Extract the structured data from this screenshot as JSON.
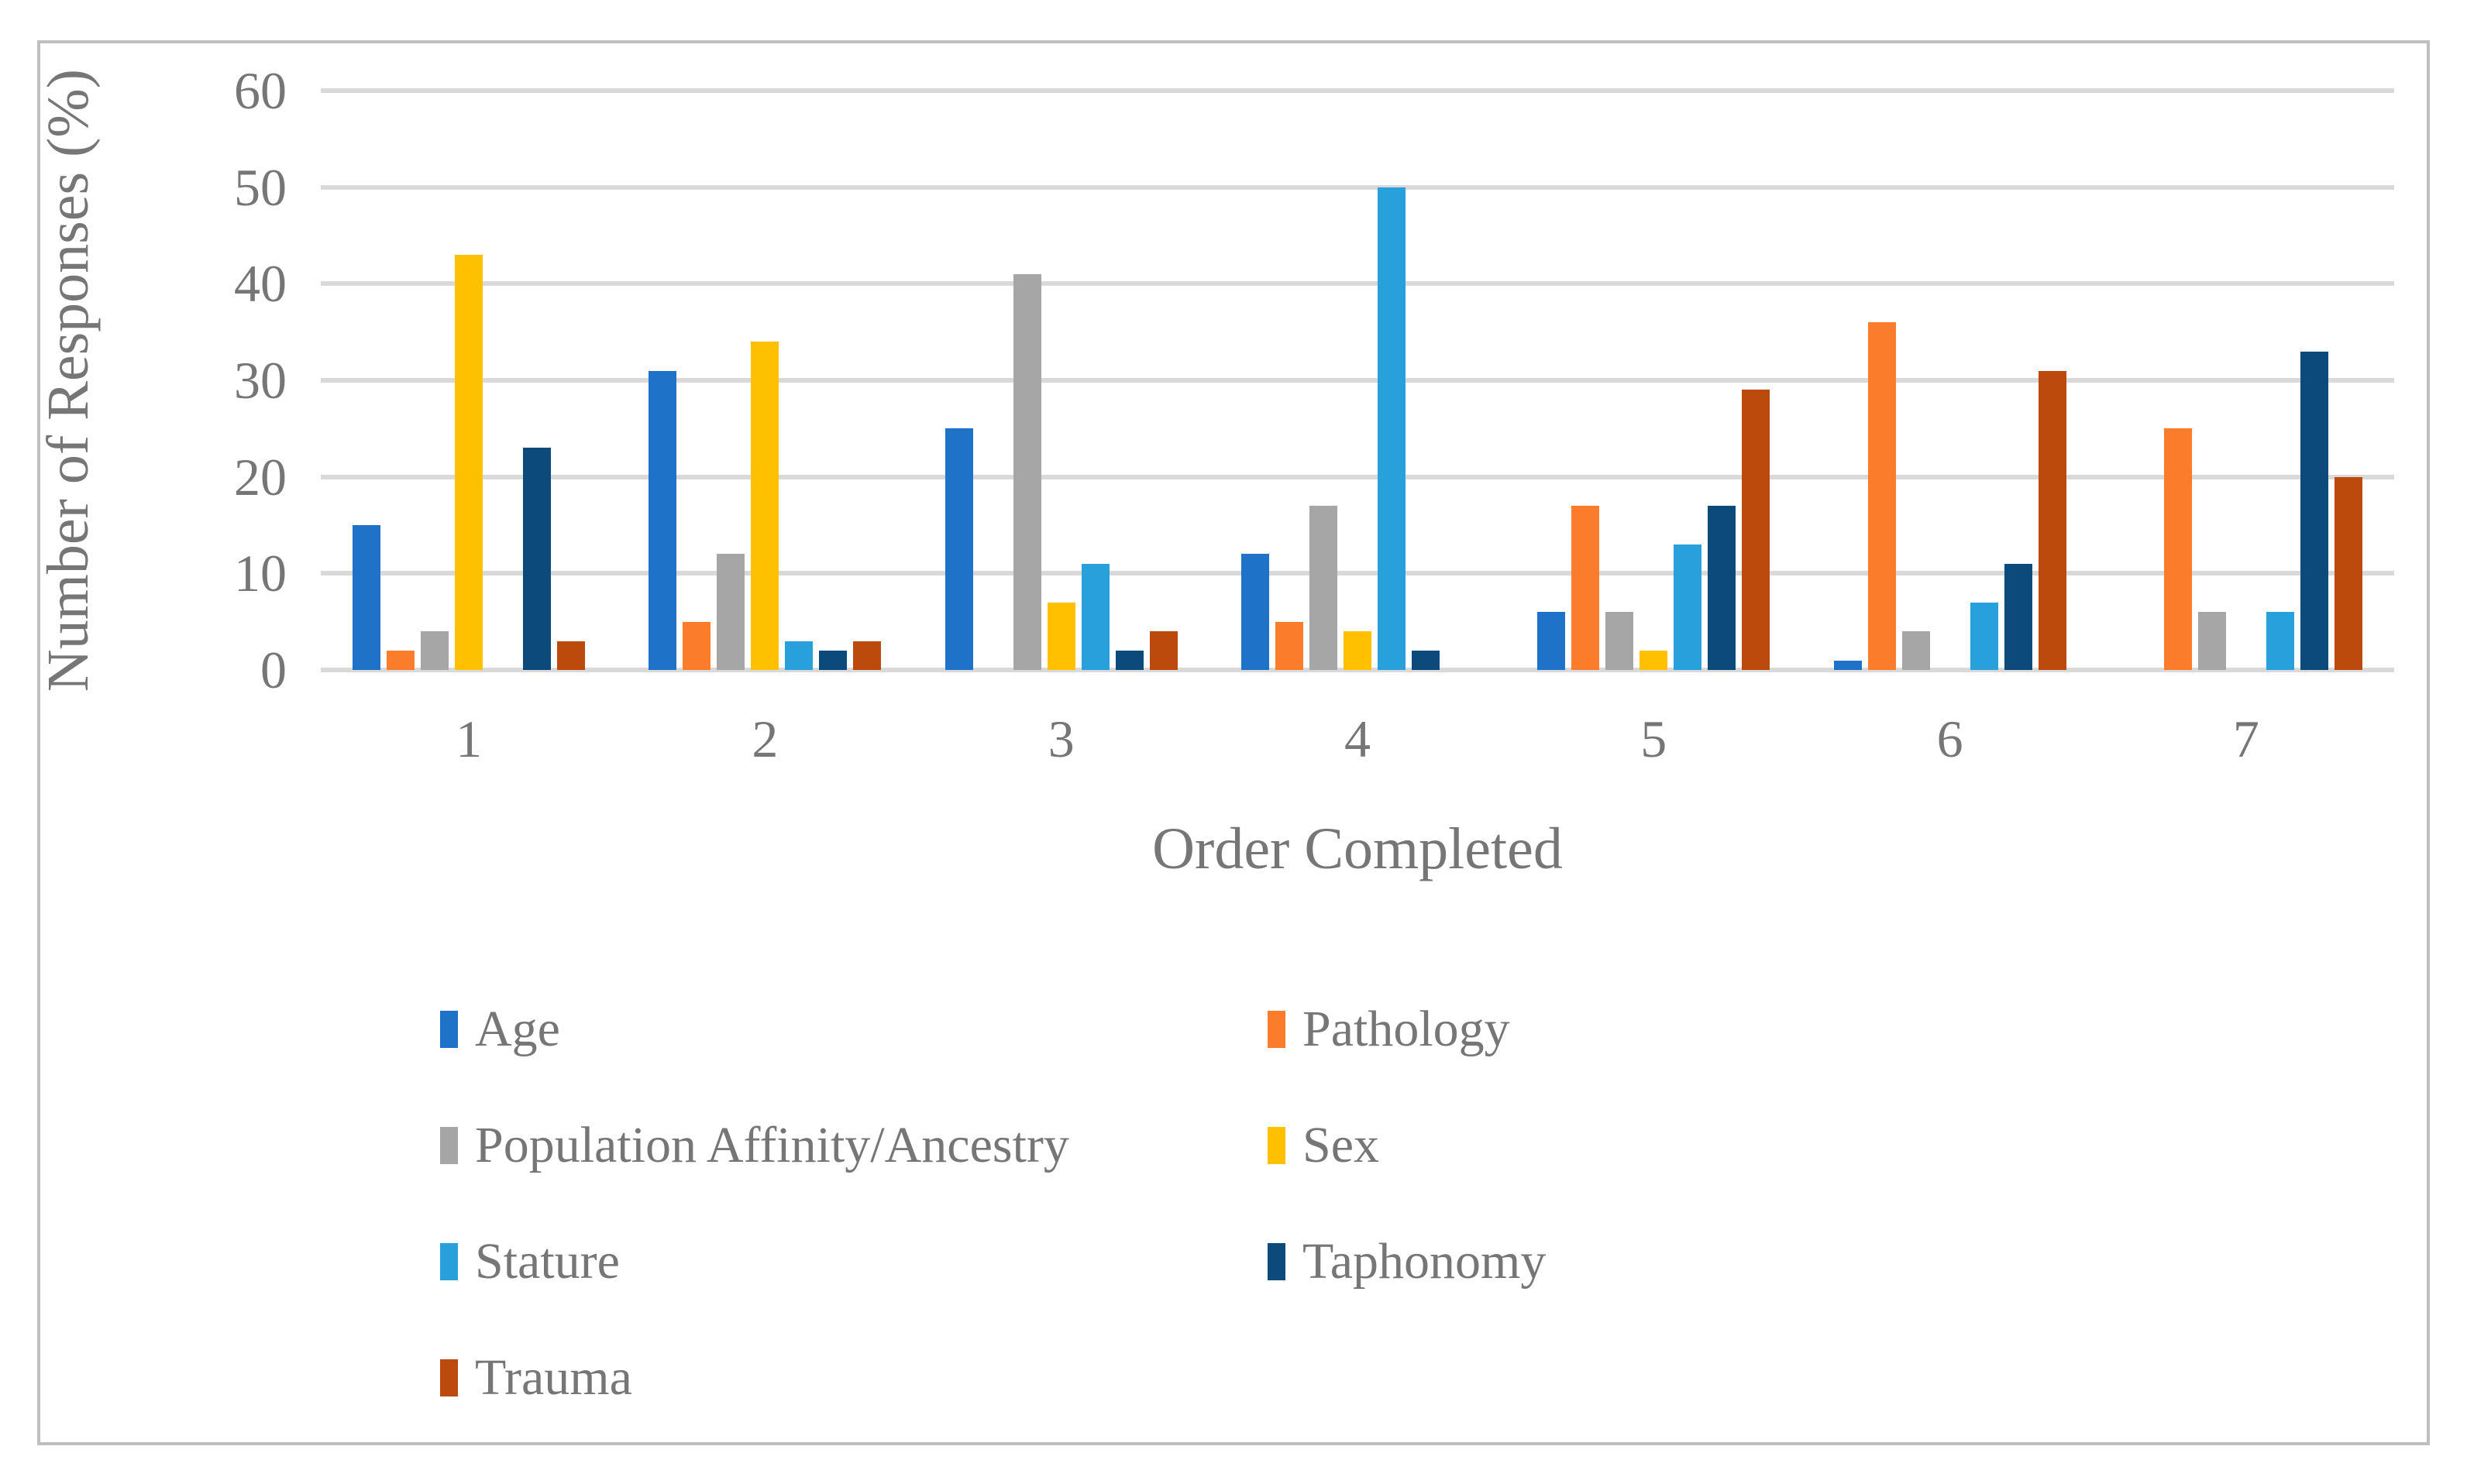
{
  "chart_data": {
    "type": "bar",
    "title": "",
    "xlabel": "Order Completed",
    "ylabel": "Number of Responses (%)",
    "ylim": [
      0,
      60
    ],
    "yticks": [
      0,
      10,
      20,
      30,
      40,
      50,
      60
    ],
    "grid": true,
    "legend_position": "bottom-two-columns",
    "categories": [
      "1",
      "2",
      "3",
      "4",
      "5",
      "6",
      "7"
    ],
    "series": [
      {
        "name": "Age",
        "color": "#1E73C8",
        "values": [
          15,
          31,
          25,
          12,
          6,
          1,
          0
        ]
      },
      {
        "name": "Pathology",
        "color": "#FB7D2B",
        "values": [
          2,
          5,
          0,
          5,
          17,
          36,
          25
        ]
      },
      {
        "name": "Population Affinity/Ancestry",
        "color": "#A6A6A6",
        "values": [
          4,
          12,
          41,
          17,
          6,
          4,
          6
        ]
      },
      {
        "name": "Sex",
        "color": "#FFC000",
        "values": [
          43,
          34,
          7,
          4,
          2,
          0,
          0
        ]
      },
      {
        "name": "Stature",
        "color": "#27A0DB",
        "values": [
          0,
          3,
          11,
          50,
          13,
          7,
          6
        ]
      },
      {
        "name": "Taphonomy",
        "color": "#0C4A7C",
        "values": [
          23,
          2,
          2,
          2,
          17,
          11,
          33
        ]
      },
      {
        "name": "Trauma",
        "color": "#BC4A0C",
        "values": [
          3,
          3,
          4,
          0,
          29,
          31,
          20
        ]
      }
    ],
    "grid_color": "#D9D9D9",
    "frame_color": "#BFBFBF",
    "text_color": "#767676"
  }
}
